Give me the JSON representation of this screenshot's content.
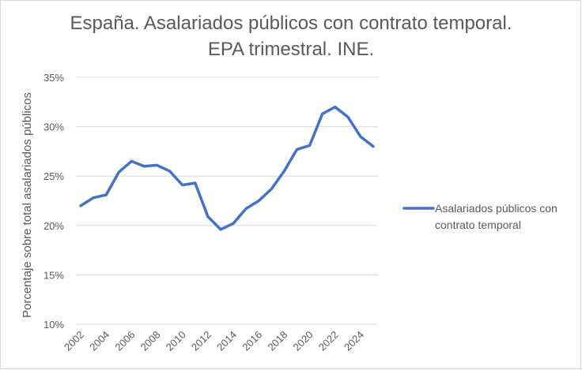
{
  "chart_data": {
    "type": "line",
    "title_lines": [
      "España. Asalariados públicos con contrato temporal.",
      "EPA trimestral. INE."
    ],
    "ylabel": "Porcentaje sobre total asalariados públicos",
    "xlabel": "",
    "ylim": [
      10,
      35
    ],
    "yticks": [
      10,
      15,
      20,
      25,
      30,
      35
    ],
    "ytick_labels": [
      "10%",
      "15%",
      "20%",
      "25%",
      "30%",
      "35%"
    ],
    "xlim": [
      2002,
      2025
    ],
    "xtick_labels": [
      "2002",
      "2004",
      "2006",
      "2008",
      "2010",
      "2012",
      "2014",
      "2016",
      "2018",
      "2020",
      "2022",
      "2024"
    ],
    "grid": "horizontal",
    "legend_position": "right",
    "series": [
      {
        "name": "Asalariados públicos con contrato temporal",
        "name_lines": [
          "Asalariados públicos con",
          "contrato temporal"
        ],
        "color": "#4472c4",
        "x": [
          2002,
          2003,
          2004,
          2005,
          2006,
          2007,
          2008,
          2009,
          2010,
          2011,
          2012,
          2013,
          2014,
          2015,
          2016,
          2017,
          2018,
          2019,
          2020,
          2021,
          2022,
          2023,
          2024,
          2025
        ],
        "values": [
          22.0,
          22.8,
          23.1,
          25.4,
          26.5,
          26.0,
          26.1,
          25.5,
          24.1,
          24.3,
          20.9,
          19.6,
          20.2,
          21.7,
          22.5,
          23.7,
          25.5,
          27.7,
          28.1,
          31.3,
          32.0,
          31.0,
          29.0,
          28.0
        ]
      }
    ]
  }
}
